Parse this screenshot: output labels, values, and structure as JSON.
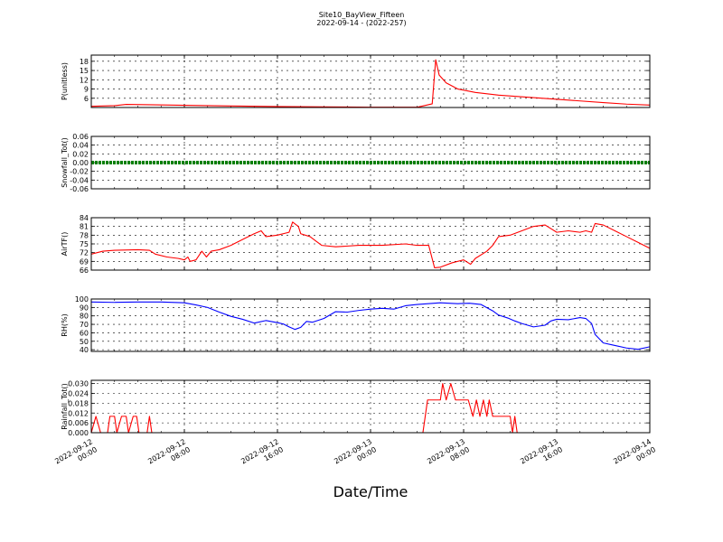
{
  "figure": {
    "title_line1": "Site10_BayView_Fifteen",
    "title_line2": "2022-09-14 - (2022-257)",
    "xlabel": "Date/Time"
  },
  "chart_data": {
    "type": "line",
    "x_range": [
      "2022-09-12 00:00",
      "2022-09-14 00:00"
    ],
    "x_ticks": [
      {
        "line1": "2022-09-12",
        "line2": "00:00",
        "hour": 0
      },
      {
        "line1": "2022-09-12",
        "line2": "08:00",
        "hour": 8
      },
      {
        "line1": "2022-09-12",
        "line2": "16:00",
        "hour": 16
      },
      {
        "line1": "2022-09-13",
        "line2": "00:00",
        "hour": 24
      },
      {
        "line1": "2022-09-13",
        "line2": "08:00",
        "hour": 32
      },
      {
        "line1": "2022-09-13",
        "line2": "16:00",
        "hour": 40
      },
      {
        "line1": "2022-09-14",
        "line2": "00:00",
        "hour": 48
      }
    ],
    "grid": true,
    "panels": [
      {
        "id": "p",
        "ylabel": "P(unitless)",
        "color": "#ff0000",
        "ylim": [
          3,
          20
        ],
        "yticks": [
          6,
          9,
          12,
          15,
          18
        ],
        "tick_labels": [
          "6",
          "9",
          "12",
          "15",
          "18"
        ],
        "style": "line",
        "points": [
          [
            0,
            3.4
          ],
          [
            2,
            3.6
          ],
          [
            3,
            4.0
          ],
          [
            5,
            3.9
          ],
          [
            8,
            3.7
          ],
          [
            12,
            3.5
          ],
          [
            16,
            3.3
          ],
          [
            20,
            3.2
          ],
          [
            24,
            3.1
          ],
          [
            28,
            3.1
          ],
          [
            28.5,
            3.5
          ],
          [
            29.3,
            4.2
          ],
          [
            29.6,
            18.5
          ],
          [
            29.9,
            13.5
          ],
          [
            30.5,
            11.0
          ],
          [
            31.5,
            9.0
          ],
          [
            33,
            7.9
          ],
          [
            35,
            7.0
          ],
          [
            38,
            6.2
          ],
          [
            41,
            5.4
          ],
          [
            44,
            4.6
          ],
          [
            46,
            4.1
          ],
          [
            48,
            3.8
          ]
        ]
      },
      {
        "id": "snow",
        "ylabel": "Snowfall_Tot()",
        "color": "#008000",
        "ylim": [
          -0.06,
          0.06
        ],
        "yticks": [
          -0.06,
          -0.04,
          -0.02,
          0.0,
          0.02,
          0.04,
          0.06
        ],
        "tick_labels": [
          "-0.06",
          "-0.04",
          "-0.02",
          "0.00",
          "0.02",
          "0.04",
          "0.06"
        ],
        "style": "thick",
        "points": [
          [
            0,
            0
          ],
          [
            48,
            0
          ]
        ]
      },
      {
        "id": "airt",
        "ylabel": "AirTF()",
        "color": "#ff0000",
        "ylim": [
          66,
          84
        ],
        "yticks": [
          66,
          69,
          72,
          75,
          78,
          81,
          84
        ],
        "tick_labels": [
          "66",
          "69",
          "72",
          "75",
          "78",
          "81",
          "84"
        ],
        "style": "line",
        "points": [
          [
            0,
            71.5
          ],
          [
            1,
            72.5
          ],
          [
            2,
            72.8
          ],
          [
            4,
            73.0
          ],
          [
            5,
            72.8
          ],
          [
            5.5,
            71.5
          ],
          [
            6.5,
            70.5
          ],
          [
            7.5,
            70.0
          ],
          [
            8,
            69.5
          ],
          [
            8.3,
            70.5
          ],
          [
            8.5,
            69.0
          ],
          [
            9,
            69.5
          ],
          [
            9.5,
            72.5
          ],
          [
            9.9,
            70.5
          ],
          [
            10.3,
            72.5
          ],
          [
            11,
            73.0
          ],
          [
            12,
            74.5
          ],
          [
            13,
            76.5
          ],
          [
            14,
            78.5
          ],
          [
            14.6,
            79.5
          ],
          [
            15,
            77.5
          ],
          [
            16,
            78.0
          ],
          [
            17,
            79.0
          ],
          [
            17.3,
            82.5
          ],
          [
            17.8,
            81.0
          ],
          [
            18,
            78.5
          ],
          [
            18.8,
            77.5
          ],
          [
            19.3,
            76.0
          ],
          [
            19.8,
            74.5
          ],
          [
            21,
            74.0
          ],
          [
            23,
            74.5
          ],
          [
            25,
            74.5
          ],
          [
            27,
            75.0
          ],
          [
            28,
            74.5
          ],
          [
            29,
            74.5
          ],
          [
            29.5,
            66.8
          ],
          [
            30,
            67.0
          ],
          [
            31,
            68.5
          ],
          [
            32,
            69.5
          ],
          [
            32.6,
            68.0
          ],
          [
            33,
            70.0
          ],
          [
            34,
            72.5
          ],
          [
            34.5,
            74.5
          ],
          [
            35,
            77.5
          ],
          [
            36,
            78.0
          ],
          [
            37,
            79.5
          ],
          [
            38,
            81.0
          ],
          [
            39,
            81.5
          ],
          [
            40,
            79.0
          ],
          [
            41,
            79.5
          ],
          [
            42,
            79.0
          ],
          [
            42.5,
            79.5
          ],
          [
            43,
            79.0
          ],
          [
            43.3,
            82.0
          ],
          [
            44,
            81.5
          ],
          [
            45,
            79.5
          ],
          [
            46,
            77.5
          ],
          [
            47,
            75.5
          ],
          [
            48,
            73.5
          ]
        ]
      },
      {
        "id": "rh",
        "ylabel": "RH(%)",
        "color": "#0000ff",
        "ylim": [
          38,
          100
        ],
        "yticks": [
          40,
          50,
          60,
          70,
          80,
          90,
          100
        ],
        "tick_labels": [
          "40",
          "50",
          "60",
          "70",
          "80",
          "90",
          "100"
        ],
        "style": "line",
        "points": [
          [
            0,
            96.5
          ],
          [
            2,
            96.0
          ],
          [
            4,
            96.5
          ],
          [
            6,
            96.5
          ],
          [
            8,
            95.5
          ],
          [
            9,
            93.0
          ],
          [
            10,
            90.0
          ],
          [
            11,
            84.5
          ],
          [
            12,
            79.5
          ],
          [
            13,
            76.0
          ],
          [
            14,
            71.5
          ],
          [
            15,
            74.5
          ],
          [
            16,
            72.0
          ],
          [
            16.5,
            70.5
          ],
          [
            17,
            67.0
          ],
          [
            17.5,
            64.0
          ],
          [
            18,
            66.5
          ],
          [
            18.5,
            73.5
          ],
          [
            19,
            72.5
          ],
          [
            20,
            77.0
          ],
          [
            20.5,
            81.0
          ],
          [
            21,
            85.0
          ],
          [
            22,
            84.5
          ],
          [
            23,
            86.5
          ],
          [
            24,
            88.0
          ],
          [
            25,
            89.0
          ],
          [
            26,
            88.0
          ],
          [
            27,
            92.0
          ],
          [
            28,
            93.5
          ],
          [
            30,
            95.5
          ],
          [
            31.5,
            94.5
          ],
          [
            32.5,
            95.0
          ],
          [
            33.5,
            93.5
          ],
          [
            34.5,
            86.0
          ],
          [
            35,
            81.0
          ],
          [
            35.8,
            77.5
          ],
          [
            36.4,
            74.0
          ],
          [
            37,
            71.0
          ],
          [
            38,
            67.0
          ],
          [
            39,
            69.0
          ],
          [
            39.5,
            74.0
          ],
          [
            40,
            76.0
          ],
          [
            41,
            75.5
          ],
          [
            42,
            78.0
          ],
          [
            42.5,
            77.0
          ],
          [
            43,
            71.0
          ],
          [
            43.3,
            58.0
          ],
          [
            44,
            48.0
          ],
          [
            45,
            45.0
          ],
          [
            46,
            42.0
          ],
          [
            47,
            40.5
          ],
          [
            48,
            43.5
          ]
        ]
      },
      {
        "id": "rain",
        "ylabel": "Rainfall_Tot()",
        "color": "#ff0000",
        "ylim": [
          0,
          0.032
        ],
        "yticks": [
          0.0,
          0.006,
          0.012,
          0.018,
          0.024,
          0.03
        ],
        "tick_labels": [
          "0.000",
          "0.006",
          "0.012",
          "0.018",
          "0.024",
          "0.030"
        ],
        "style": "line",
        "points": [
          [
            0,
            0
          ],
          [
            0.4,
            0.01
          ],
          [
            0.8,
            0
          ],
          [
            1.4,
            0
          ],
          [
            1.6,
            0.01
          ],
          [
            2,
            0.01
          ],
          [
            2.2,
            0
          ],
          [
            2.6,
            0.01
          ],
          [
            3,
            0.01
          ],
          [
            3.2,
            0
          ],
          [
            3.6,
            0.01
          ],
          [
            3.9,
            0.01
          ],
          [
            4.1,
            0
          ],
          [
            4.8,
            0
          ],
          [
            5,
            0.01
          ],
          [
            5.2,
            0
          ],
          [
            28.5,
            0
          ],
          [
            28.9,
            0.02
          ],
          [
            30,
            0.02
          ],
          [
            30.2,
            0.03
          ],
          [
            30.5,
            0.02
          ],
          [
            30.9,
            0.03
          ],
          [
            31.3,
            0.02
          ],
          [
            32.4,
            0.02
          ],
          [
            32.8,
            0.01
          ],
          [
            33.1,
            0.02
          ],
          [
            33.4,
            0.01
          ],
          [
            33.7,
            0.02
          ],
          [
            34,
            0.01
          ],
          [
            34.2,
            0.02
          ],
          [
            34.5,
            0.01
          ],
          [
            36,
            0.01
          ],
          [
            36.2,
            0
          ],
          [
            36.4,
            0.01
          ],
          [
            36.6,
            0
          ],
          [
            48,
            0
          ]
        ]
      }
    ]
  }
}
